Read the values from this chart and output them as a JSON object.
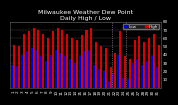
{
  "title": "Milwaukee Weather Dew Point",
  "subtitle": "Daily High / Low",
  "background_color": "#000000",
  "plot_bg_color": "#000000",
  "legend_labels": [
    "Low",
    "High"
  ],
  "legend_colors": [
    "#0000ee",
    "#dd0000"
  ],
  "ylim": [
    0,
    80
  ],
  "yticks": [
    10,
    20,
    30,
    40,
    50,
    60,
    70,
    80
  ],
  "high_values": [
    52,
    50,
    65,
    68,
    72,
    70,
    65,
    60,
    68,
    72,
    70,
    65,
    60,
    58,
    64,
    70,
    72,
    55,
    50,
    48,
    25,
    42,
    68,
    38,
    35,
    58,
    62,
    55,
    60,
    65,
    52
  ],
  "low_values": [
    28,
    26,
    40,
    44,
    48,
    45,
    38,
    32,
    40,
    45,
    42,
    38,
    35,
    30,
    38,
    44,
    46,
    28,
    22,
    20,
    8,
    18,
    40,
    12,
    10,
    30,
    35,
    28,
    32,
    38,
    25
  ],
  "x_labels": [
    "1",
    "2",
    "3",
    "4",
    "5",
    "6",
    "7",
    "8",
    "9",
    "10",
    "11",
    "12",
    "13",
    "14",
    "15",
    "16",
    "17",
    "18",
    "19",
    "20",
    "21",
    "22",
    "23",
    "24",
    "25",
    "26",
    "27",
    "28",
    "29",
    "30",
    "31"
  ],
  "vline_positions": [
    20.5,
    23.5
  ],
  "high_color": "#dd0000",
  "low_color": "#0000ee",
  "bar_width": 0.42,
  "title_fontsize": 4.5,
  "tick_fontsize": 3.0,
  "tick_color": "#ffffff",
  "label_color": "#ffffff",
  "grid_color": "#444444"
}
